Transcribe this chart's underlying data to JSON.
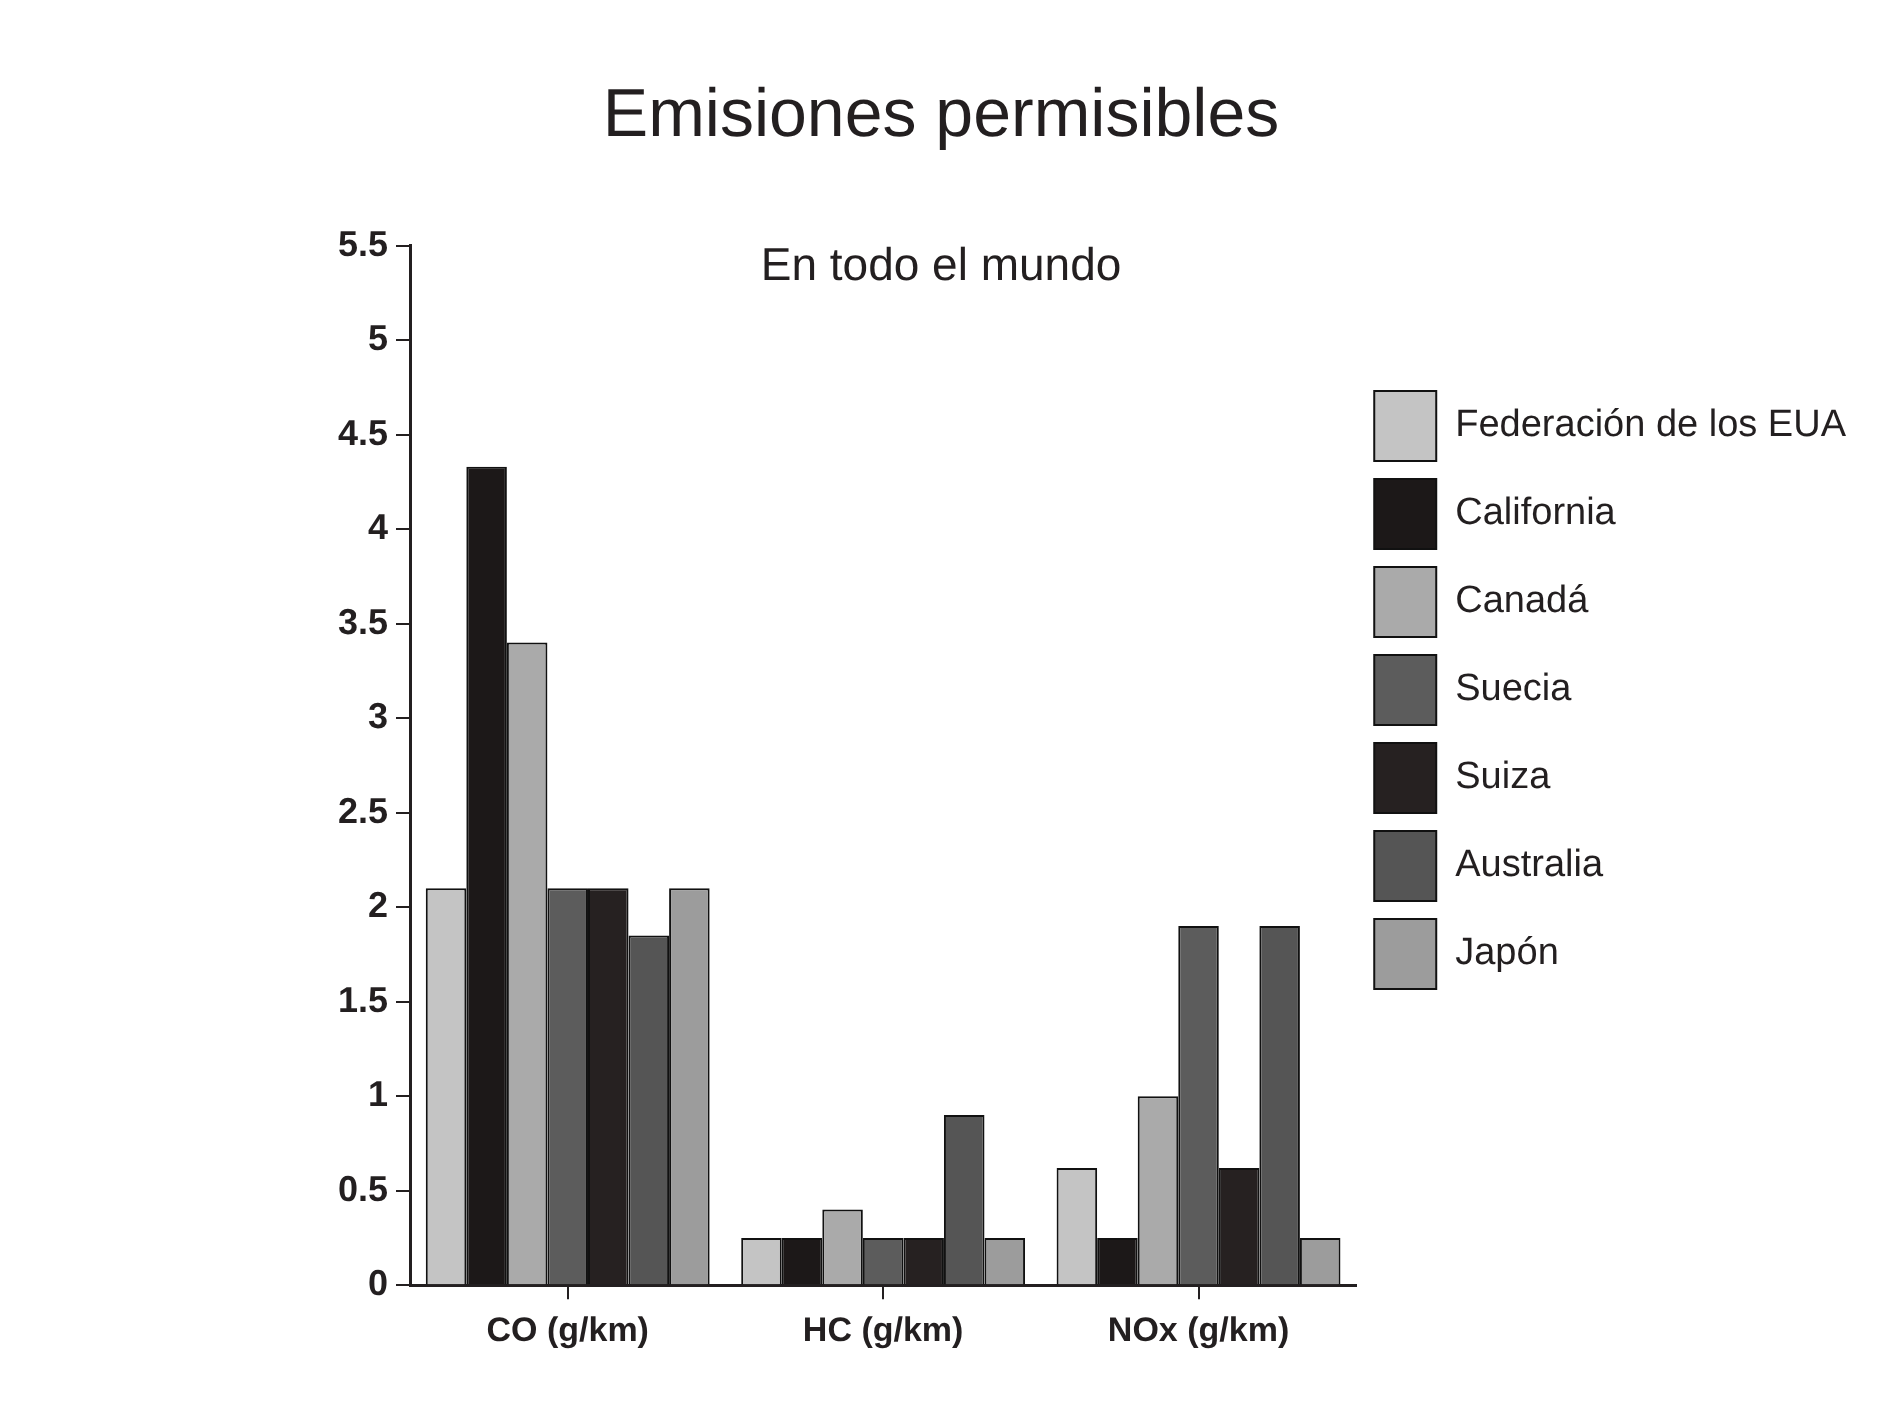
{
  "chart_data": {
    "type": "bar",
    "title": "Emisiones permisibles",
    "subtitle": "En todo el mundo",
    "categories": [
      "CO (g/km)",
      "HC (g/km)",
      "NOx (g/km)"
    ],
    "series": [
      {
        "name": "Federación de los EUA",
        "color": "#c4c4c4",
        "values": [
          2.1,
          0.25,
          0.62
        ]
      },
      {
        "name": "California",
        "color": "#1c1818",
        "values": [
          4.33,
          0.25,
          0.25
        ]
      },
      {
        "name": "Canadá",
        "color": "#aaaaaa",
        "values": [
          3.4,
          0.4,
          1.0
        ]
      },
      {
        "name": "Suecia",
        "color": "#5c5c5c",
        "values": [
          2.1,
          0.25,
          1.9
        ]
      },
      {
        "name": "Suiza",
        "color": "#262121",
        "values": [
          2.1,
          0.25,
          0.62
        ]
      },
      {
        "name": "Australia",
        "color": "#555555",
        "values": [
          1.85,
          0.9,
          1.9
        ]
      },
      {
        "name": "Japón",
        "color": "#9c9c9c",
        "values": [
          2.1,
          0.25,
          0.25
        ]
      }
    ],
    "ylim": [
      0,
      5.5
    ],
    "yticks": [
      0,
      0.5,
      1,
      1.5,
      2,
      2.5,
      3,
      3.5,
      4,
      4.5,
      5,
      5.5
    ],
    "grid": false,
    "legend": "right"
  }
}
